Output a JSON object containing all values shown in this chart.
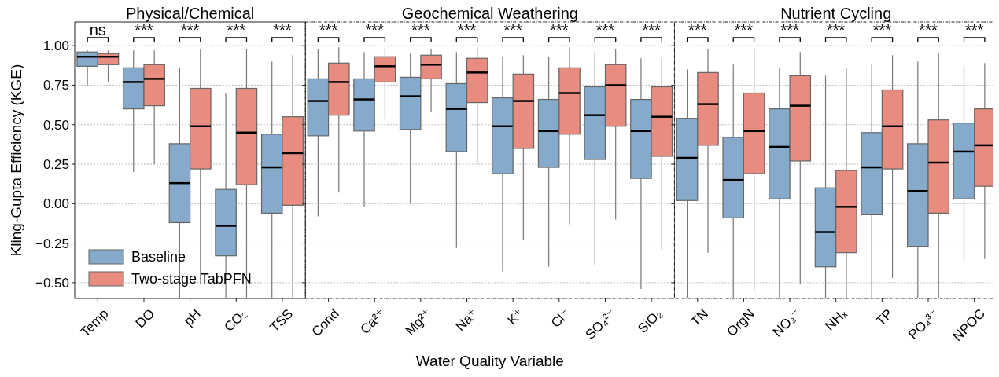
{
  "chart_data": [
    {
      "type": "box",
      "title": "Physical/Chemical",
      "ylabel": "Kling-Gupta Efficiency (KGE)",
      "categories": [
        "Temp",
        "DO",
        "pH",
        "CO₂",
        "TSS"
      ],
      "series": [
        {
          "name": "Baseline",
          "color": "#85aacb",
          "boxes": [
            {
              "low": 0.75,
              "q1": 0.87,
              "median": 0.93,
              "q3": 0.96,
              "high": 0.97
            },
            {
              "low": 0.2,
              "q1": 0.6,
              "median": 0.77,
              "q3": 0.86,
              "high": 0.97
            },
            {
              "low": -0.6,
              "q1": -0.12,
              "median": 0.13,
              "q3": 0.38,
              "high": 0.86
            },
            {
              "low": -0.6,
              "q1": -0.33,
              "median": -0.14,
              "q3": 0.09,
              "high": 0.7
            },
            {
              "low": -0.6,
              "q1": -0.06,
              "median": 0.23,
              "q3": 0.44,
              "high": 0.9
            }
          ]
        },
        {
          "name": "Two-stage TabPFN",
          "color": "#e88c80",
          "boxes": [
            {
              "low": 0.77,
              "q1": 0.88,
              "median": 0.93,
              "q3": 0.95,
              "high": 0.97
            },
            {
              "low": 0.25,
              "q1": 0.62,
              "median": 0.79,
              "q3": 0.88,
              "high": 0.97
            },
            {
              "low": -0.51,
              "q1": 0.22,
              "median": 0.49,
              "q3": 0.73,
              "high": 0.98
            },
            {
              "low": -0.6,
              "q1": 0.12,
              "median": 0.45,
              "q3": 0.73,
              "high": 0.98
            },
            {
              "low": -0.6,
              "q1": -0.01,
              "median": 0.32,
              "q3": 0.55,
              "high": 0.94
            }
          ]
        }
      ],
      "ylim": [
        -0.6,
        1.15
      ],
      "yticks": [
        {
          "value": -0.5,
          "label": "−0.50"
        },
        {
          "value": -0.25,
          "label": "−0.25"
        },
        {
          "value": 0,
          "label": "0.00"
        },
        {
          "value": 0.25,
          "label": "0.25"
        },
        {
          "value": 0.5,
          "label": "0.50"
        },
        {
          "value": 0.75,
          "label": "0.75"
        },
        {
          "value": 1,
          "label": "1.00"
        }
      ],
      "grid": "y",
      "legend": "bottom left",
      "annotations": [
        "ns",
        "***",
        "***",
        "***",
        "***"
      ]
    },
    {
      "type": "box",
      "title": "Geochemical Weathering",
      "xlabel": "Water Quality Variable",
      "categories": [
        "Cond",
        "Ca²⁺",
        "Mg²⁺",
        "Na⁺",
        "K⁺",
        "Cl⁻",
        "SO₄²⁻",
        "SiO₂"
      ],
      "series": [
        {
          "color": "#85aacb",
          "boxes": [
            {
              "low": -0.08,
              "q1": 0.43,
              "median": 0.65,
              "q3": 0.79,
              "high": 0.98
            },
            {
              "low": -0.02,
              "q1": 0.46,
              "median": 0.66,
              "q3": 0.79,
              "high": 0.96
            },
            {
              "low": 0.0,
              "q1": 0.47,
              "median": 0.68,
              "q3": 0.8,
              "high": 0.95
            },
            {
              "low": -0.28,
              "q1": 0.33,
              "median": 0.6,
              "q3": 0.76,
              "high": 0.96
            },
            {
              "low": -0.43,
              "q1": 0.19,
              "median": 0.49,
              "q3": 0.67,
              "high": 0.93
            },
            {
              "low": -0.4,
              "q1": 0.23,
              "median": 0.46,
              "q3": 0.66,
              "high": 0.93
            },
            {
              "low": -0.39,
              "q1": 0.28,
              "median": 0.56,
              "q3": 0.74,
              "high": 0.96
            },
            {
              "low": -0.54,
              "q1": 0.16,
              "median": 0.46,
              "q3": 0.66,
              "high": 0.92
            }
          ]
        },
        {
          "color": "#e88c80",
          "boxes": [
            {
              "low": 0.07,
              "q1": 0.56,
              "median": 0.77,
              "q3": 0.89,
              "high": 0.99
            },
            {
              "low": 0.54,
              "q1": 0.77,
              "median": 0.87,
              "q3": 0.93,
              "high": 0.98
            },
            {
              "low": 0.58,
              "q1": 0.79,
              "median": 0.88,
              "q3": 0.94,
              "high": 0.98
            },
            {
              "low": 0.25,
              "q1": 0.64,
              "median": 0.83,
              "q3": 0.92,
              "high": 0.99
            },
            {
              "low": -0.23,
              "q1": 0.35,
              "median": 0.65,
              "q3": 0.82,
              "high": 0.94
            },
            {
              "low": -0.13,
              "q1": 0.44,
              "median": 0.7,
              "q3": 0.86,
              "high": 0.99
            },
            {
              "low": -0.1,
              "q1": 0.49,
              "median": 0.75,
              "q3": 0.88,
              "high": 0.98
            },
            {
              "low": -0.29,
              "q1": 0.3,
              "median": 0.55,
              "q3": 0.74,
              "high": 0.92
            }
          ]
        }
      ],
      "ylim": [
        -0.6,
        1.15
      ],
      "yticks": [
        -0.5,
        -0.25,
        0,
        0.25,
        0.5,
        0.75,
        1
      ],
      "tick_labels": "x",
      "grid": "y",
      "annotations": [
        "***",
        "***",
        "***",
        "***",
        "***",
        "***",
        "***",
        "***"
      ]
    },
    {
      "type": "box",
      "title": "Nutrient Cycling",
      "categories": [
        "TN",
        "OrgN",
        "NO₃⁻",
        "NHₓ",
        "TP",
        "PO₄³⁻",
        "NPOC"
      ],
      "series": [
        {
          "color": "#85aacb",
          "boxes": [
            {
              "low": -0.6,
              "q1": 0.02,
              "median": 0.29,
              "q3": 0.54,
              "high": 0.85
            },
            {
              "low": -0.6,
              "q1": -0.09,
              "median": 0.15,
              "q3": 0.42,
              "high": 0.88
            },
            {
              "low": -0.6,
              "q1": 0.03,
              "median": 0.36,
              "q3": 0.6,
              "high": 0.86
            },
            {
              "low": -0.6,
              "q1": -0.4,
              "median": -0.18,
              "q3": 0.1,
              "high": 0.81
            },
            {
              "low": -0.6,
              "q1": -0.07,
              "median": 0.23,
              "q3": 0.45,
              "high": 0.88
            },
            {
              "low": -0.6,
              "q1": -0.27,
              "median": 0.08,
              "q3": 0.38,
              "high": 0.9
            },
            {
              "low": -0.36,
              "q1": 0.03,
              "median": 0.33,
              "q3": 0.51,
              "high": 0.87
            }
          ]
        },
        {
          "color": "#e88c80",
          "boxes": [
            {
              "low": -0.31,
              "q1": 0.37,
              "median": 0.63,
              "q3": 0.83,
              "high": 0.98
            },
            {
              "low": -0.55,
              "q1": 0.19,
              "median": 0.46,
              "q3": 0.7,
              "high": 0.98
            },
            {
              "low": -0.51,
              "q1": 0.27,
              "median": 0.62,
              "q3": 0.81,
              "high": 0.96
            },
            {
              "low": -0.6,
              "q1": -0.31,
              "median": -0.02,
              "q3": 0.21,
              "high": 0.86
            },
            {
              "low": -0.47,
              "q1": 0.22,
              "median": 0.49,
              "q3": 0.72,
              "high": 0.94
            },
            {
              "low": -0.6,
              "q1": -0.06,
              "median": 0.26,
              "q3": 0.53,
              "high": 0.95
            },
            {
              "low": -0.35,
              "q1": 0.11,
              "median": 0.37,
              "q3": 0.6,
              "high": 0.89
            }
          ]
        }
      ],
      "ylim": [
        -0.6,
        1.15
      ],
      "yticks": [
        -0.5,
        -0.25,
        0,
        0.25,
        0.5,
        0.75,
        1
      ],
      "tick_labels": "x",
      "grid": "y",
      "annotations": [
        "***",
        "***",
        "***",
        "***",
        "***",
        "***",
        "***"
      ]
    }
  ]
}
